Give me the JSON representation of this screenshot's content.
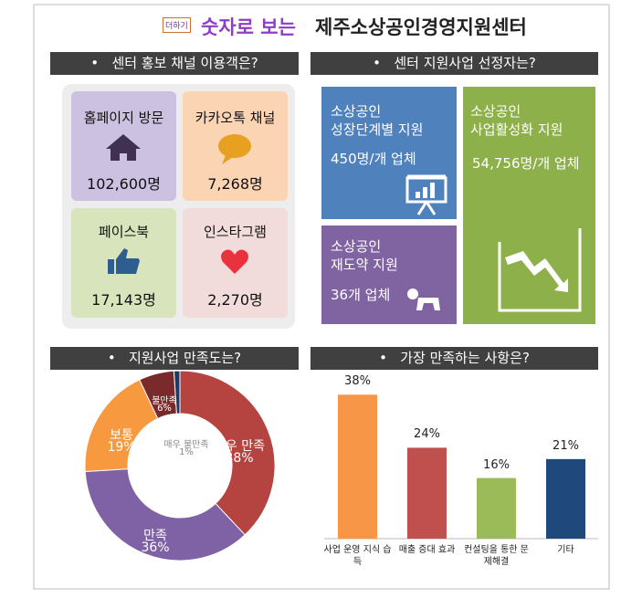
{
  "header": {
    "logo": "더하기",
    "title_highlight": "숫자로 보는",
    "title_main": "제주소상공인경영지원센터"
  },
  "channels": {
    "heading": "센터 홍보 채널 이용객은?",
    "items": [
      {
        "name": "홈페이지 방문",
        "value": "102,600명"
      },
      {
        "name": "카카오톡 채널",
        "value": "7,268명"
      },
      {
        "name": "페이스북",
        "value": "17,143명"
      },
      {
        "name": "인스타그램",
        "value": "2,270명"
      }
    ]
  },
  "programs": {
    "heading": "센터 지원사업 선정자는?",
    "items": [
      {
        "title_lines": [
          "소상공인",
          "성장단계별 지원"
        ],
        "value": "450명/개 업체"
      },
      {
        "title_lines": [
          "소상공인",
          "사업활성화 지원"
        ],
        "value": "54,756명/개 업체"
      },
      {
        "title_lines": [
          "소상공인",
          "재도약 지원"
        ],
        "value": "36개 업체"
      }
    ]
  },
  "chart_data": [
    {
      "type": "donut",
      "title": "지원사업 만족도는?",
      "categories": [
        "매우 만족",
        "만족",
        "보통",
        "불만족",
        "매우 불만족"
      ],
      "values": [
        38,
        36,
        19,
        6,
        1
      ],
      "value_labels": [
        "38%",
        "36%",
        "19%",
        "6%",
        "1%"
      ],
      "colors": [
        "#b5433f",
        "#7f62a6",
        "#f6993f",
        "#7a2a2a",
        "#203864"
      ]
    },
    {
      "type": "bar",
      "title": "가장 만족하는 사항은?",
      "categories": [
        "사업 운영 지식 습득",
        "매출 증대 효과",
        "컨설팅을 통한 문제해결",
        "기타"
      ],
      "values": [
        38,
        24,
        16,
        21
      ],
      "value_labels": [
        "38%",
        "24%",
        "16%",
        "21%"
      ],
      "colors": [
        "#f79646",
        "#c0504d",
        "#9bbb59",
        "#1f497d"
      ]
    }
  ]
}
